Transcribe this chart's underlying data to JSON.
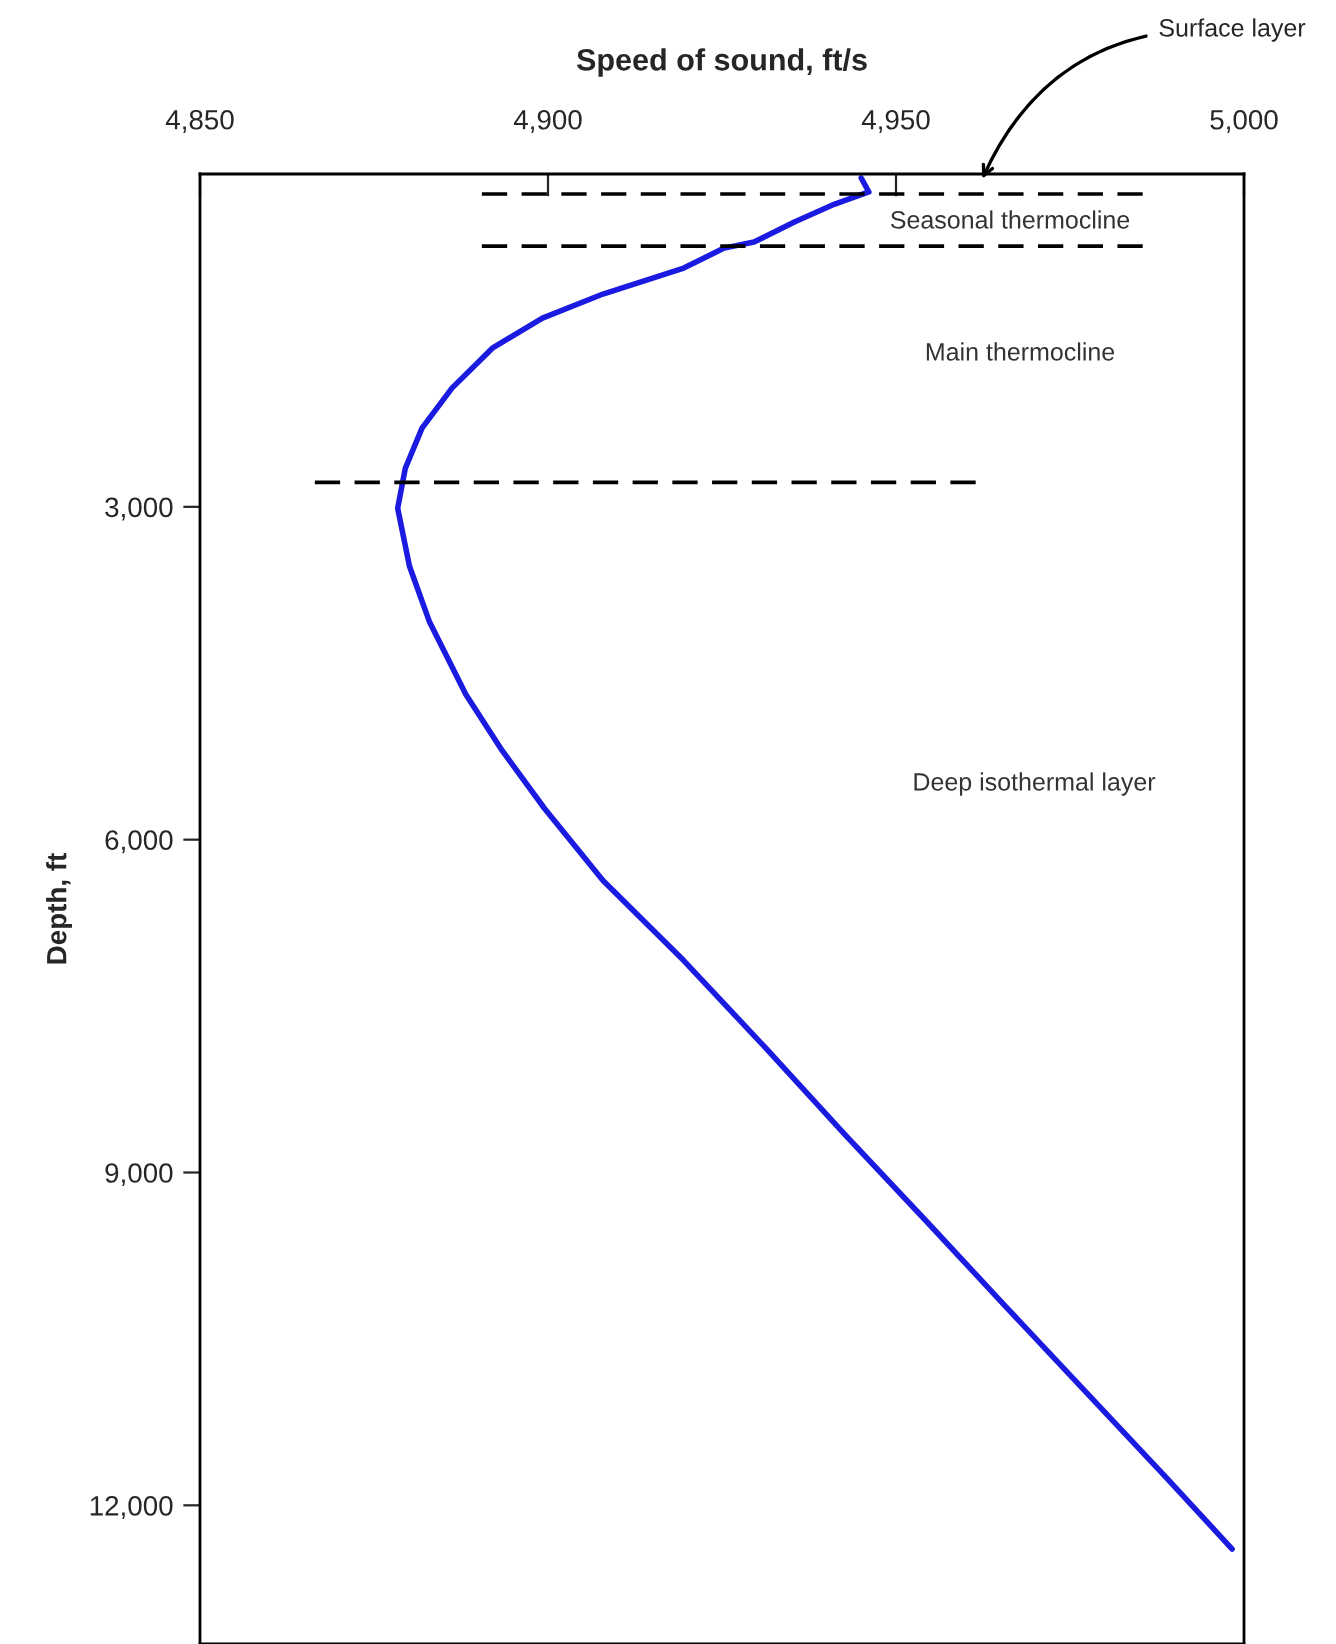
{
  "chart_data": {
    "type": "line",
    "xlabel": "Speed of sound, ft/s",
    "ylabel": "Depth, ft",
    "series": [
      {
        "color": "#1a1ae0",
        "x": [
          4945.0,
          4946.1,
          4941.2,
          4935.4,
          4929.6,
          4925.3,
          4919.5,
          4907.9,
          4899.2,
          4892.0,
          4886.2,
          4881.9,
          4879.5,
          4878.4,
          4880.1,
          4883.0,
          4888.2,
          4893.4,
          4899.5,
          4907.9,
          4919.5,
          4931.1,
          4942.7,
          4954.3,
          4965.8,
          4977.4,
          4989.0,
          4998.3
        ],
        "values": [
          36,
          162,
          271,
          433,
          613,
          668,
          848,
          1082,
          1299,
          1570,
          1930,
          2291,
          2652,
          3013,
          3536,
          4041,
          4691,
          5196,
          5719,
          6368,
          7090,
          7866,
          8660,
          9435,
          10211,
          10987,
          11762,
          12394
        ]
      }
    ],
    "xlim": [
      4850,
      5000
    ],
    "xticks": [
      {
        "value": 4850,
        "label": "4,850"
      },
      {
        "value": 4900,
        "label": "4,900"
      },
      {
        "value": 4950,
        "label": "4,950"
      },
      {
        "value": 5000,
        "label": "5,000"
      }
    ],
    "ylim": [
      13250,
      0
    ],
    "yticks": [
      {
        "value": 3000,
        "label": "3,000"
      },
      {
        "value": 6000,
        "label": "6,000"
      },
      {
        "value": 9000,
        "label": "9,000"
      },
      {
        "value": 12000,
        "label": "12,000"
      }
    ],
    "ref_lines": [
      {
        "axis": "y",
        "value": 180,
        "color": "#000000",
        "line_style": "dashed"
      },
      {
        "axis": "y",
        "value": 650,
        "color": "#000000",
        "line_style": "dashed"
      },
      {
        "axis": "y",
        "value": 2780,
        "color": "#000000",
        "line_style": "dashed"
      }
    ],
    "annotations": [
      "Surface layer",
      "Seasonal thermocline",
      "Main thermocline",
      "Deep isothermal layer"
    ],
    "grid": false,
    "legend": false,
    "marker": "none",
    "line_style": "solid"
  }
}
